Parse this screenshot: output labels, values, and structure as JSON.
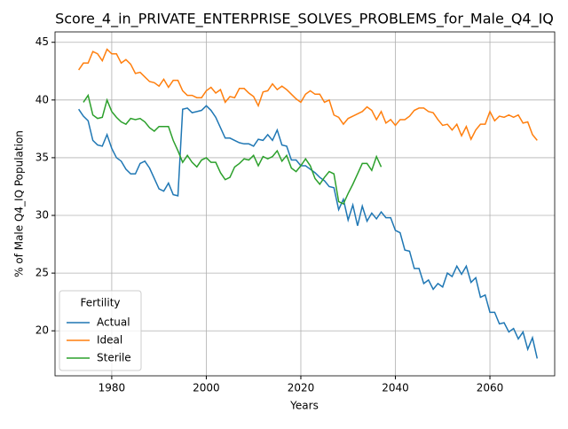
{
  "chart_data": {
    "type": "line",
    "title": "Score_4_in_PRIVATE_ENTERPRISE_SOLVES_PROBLEMS_for_Male_Q4_IQ",
    "xlabel": "Years",
    "ylabel": "% of Male Q4_IQ Population",
    "legend_title": "Fertility",
    "legend": "lower left",
    "grid": true,
    "xlim": [
      1968,
      2073.7
    ],
    "ylim": [
      16.1,
      45.9
    ],
    "xticks": [
      1980,
      2000,
      2020,
      2040,
      2060
    ],
    "yticks": [
      20,
      25,
      30,
      35,
      40,
      45
    ],
    "x": [
      1973,
      1974,
      1975,
      1976,
      1977,
      1978,
      1979,
      1980,
      1981,
      1982,
      1983,
      1984,
      1985,
      1986,
      1987,
      1988,
      1989,
      1990,
      1991,
      1992,
      1993,
      1994,
      1995,
      1996,
      1997,
      1998,
      1999,
      2000,
      2001,
      2002,
      2003,
      2004,
      2005,
      2006,
      2007,
      2008,
      2009,
      2010,
      2011,
      2012,
      2013,
      2014,
      2015,
      2016,
      2017,
      2018,
      2019,
      2020,
      2021,
      2022,
      2023,
      2024,
      2025,
      2026,
      2027,
      2028,
      2029,
      2030,
      2031,
      2032,
      2033,
      2034,
      2035,
      2036,
      2037,
      2038,
      2039,
      2040,
      2041,
      2042,
      2043,
      2044,
      2045,
      2046,
      2047,
      2048,
      2049,
      2050,
      2051,
      2052,
      2053,
      2054,
      2055,
      2056,
      2057,
      2058,
      2059,
      2060,
      2061,
      2062,
      2063,
      2064,
      2065,
      2066,
      2067,
      2068,
      2069,
      2070
    ],
    "series": [
      {
        "name": "Actual",
        "color": "#1f77b4",
        "values": [
          39.2,
          38.6,
          38.2,
          36.5,
          36.1,
          36.0,
          37.0,
          35.8,
          35.0,
          34.7,
          34.0,
          33.6,
          33.6,
          34.5,
          34.7,
          34.1,
          33.2,
          32.3,
          32.1,
          32.8,
          31.8,
          31.7,
          39.2,
          39.3,
          38.9,
          39.0,
          39.1,
          39.5,
          39.1,
          38.5,
          37.6,
          36.7,
          36.7,
          36.5,
          36.3,
          36.2,
          36.2,
          36.0,
          36.6,
          36.5,
          37.0,
          36.5,
          37.4,
          36.1,
          36.0,
          34.8,
          34.8,
          34.3,
          34.3,
          34.0,
          33.7,
          33.3,
          33.0,
          32.5,
          32.4,
          30.5,
          31.4,
          29.6,
          30.9,
          29.1,
          30.8,
          29.5,
          30.2,
          29.7,
          30.3,
          29.8,
          29.8,
          28.7,
          28.5,
          27.0,
          26.9,
          25.4,
          25.4,
          24.1,
          24.4,
          23.6,
          24.1,
          23.8,
          25.0,
          24.7,
          25.6,
          24.9,
          25.6,
          24.2,
          24.6,
          22.9,
          23.1,
          21.6,
          21.6,
          20.6,
          20.7,
          19.9,
          20.2,
          19.3,
          19.9,
          18.4,
          19.4,
          17.6
        ]
      },
      {
        "name": "Ideal",
        "color": "#ff7f0e",
        "values": [
          42.6,
          43.2,
          43.2,
          44.2,
          44.0,
          43.4,
          44.4,
          44.0,
          44.0,
          43.2,
          43.5,
          43.1,
          42.3,
          42.4,
          42.0,
          41.6,
          41.5,
          41.2,
          41.8,
          41.1,
          41.7,
          41.7,
          40.8,
          40.4,
          40.4,
          40.2,
          40.2,
          40.8,
          41.1,
          40.6,
          40.9,
          39.8,
          40.3,
          40.2,
          41.0,
          41.0,
          40.6,
          40.3,
          39.5,
          40.7,
          40.8,
          41.4,
          40.9,
          41.2,
          40.9,
          40.5,
          40.1,
          39.8,
          40.5,
          40.8,
          40.5,
          40.5,
          39.8,
          40.0,
          38.7,
          38.5,
          37.9,
          38.4,
          38.6,
          38.8,
          39.0,
          39.4,
          39.1,
          38.3,
          39.0,
          38.0,
          38.3,
          37.8,
          38.3,
          38.3,
          38.6,
          39.1,
          39.3,
          39.3,
          39.0,
          38.9,
          38.3,
          37.8,
          37.9,
          37.4,
          37.9,
          36.9,
          37.7,
          36.6,
          37.4,
          37.9,
          37.9,
          39.0,
          38.2,
          38.6,
          38.5,
          38.7,
          38.5,
          38.7,
          38.0,
          38.1,
          37.0,
          36.5
        ]
      },
      {
        "name": "Sterile",
        "color": "#2ca02c",
        "values": [
          null,
          39.8,
          40.4,
          38.7,
          38.4,
          38.5,
          40.0,
          39.0,
          38.5,
          38.1,
          37.9,
          38.4,
          38.3,
          38.4,
          38.1,
          37.6,
          37.3,
          37.7,
          37.7,
          37.7,
          36.5,
          35.6,
          34.6,
          35.2,
          34.6,
          34.2,
          34.8,
          35.0,
          34.6,
          34.6,
          33.7,
          33.1,
          33.3,
          34.2,
          34.5,
          34.9,
          34.8,
          35.2,
          34.3,
          35.1,
          34.9,
          35.1,
          35.6,
          34.7,
          35.2,
          34.1,
          33.8,
          34.3,
          34.9,
          34.3,
          33.2,
          32.7,
          33.3,
          33.8,
          33.6,
          31.2,
          31.0,
          31.9,
          32.7,
          33.6,
          34.5,
          34.5,
          33.9,
          35.1,
          34.2,
          null,
          null,
          null,
          null,
          null,
          null,
          null,
          null,
          null,
          null,
          null,
          null,
          null,
          null,
          null,
          null,
          null,
          null,
          null,
          null,
          null,
          null,
          null,
          null,
          null,
          null,
          null,
          null,
          null,
          null,
          null,
          null,
          null
        ]
      }
    ]
  }
}
